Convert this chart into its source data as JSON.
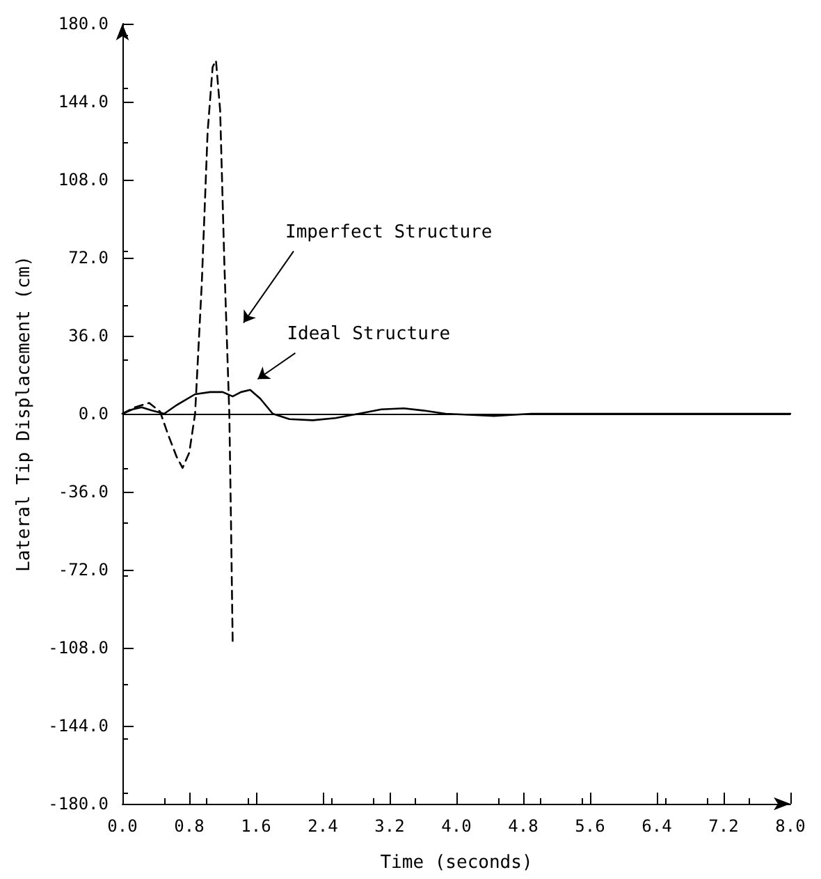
{
  "chart_data": {
    "type": "line",
    "xlabel": "Time (seconds)",
    "ylabel": "Lateral Tip Displacement (cm)",
    "xlim": [
      0,
      8.0
    ],
    "xticks": [
      {
        "value": 0,
        "label": "0.0"
      },
      {
        "value": 0.8,
        "label": "0.8"
      },
      {
        "value": 1.6,
        "label": "1.6"
      },
      {
        "value": 2.4,
        "label": "2.4"
      },
      {
        "value": 3.2,
        "label": "3.2"
      },
      {
        "value": 4.0,
        "label": "4.0"
      },
      {
        "value": 4.8,
        "label": "4.8"
      },
      {
        "value": 5.6,
        "label": "5.6"
      },
      {
        "value": 6.4,
        "label": "6.4"
      },
      {
        "value": 7.2,
        "label": "7.2"
      },
      {
        "value": 8.0,
        "label": "8.0"
      }
    ],
    "ylim": [
      -180,
      180
    ],
    "yticks": [
      {
        "value": -180,
        "label": "-180.0"
      },
      {
        "value": -144,
        "label": "-144.0"
      },
      {
        "value": -108,
        "label": "-108.0"
      },
      {
        "value": -72,
        "label": "-72.0"
      },
      {
        "value": -36,
        "label": "-36.0"
      },
      {
        "value": 0,
        "label": "0.0"
      },
      {
        "value": 36,
        "label": "36.0"
      },
      {
        "value": 72,
        "label": "72.0"
      },
      {
        "value": 108,
        "label": "108.0"
      },
      {
        "value": 144,
        "label": "144.0"
      },
      {
        "value": 180,
        "label": "180.0"
      }
    ],
    "grid": false,
    "marker": "none",
    "ref_lines": [
      {
        "axis": "y",
        "value": 0,
        "color": "#000000"
      }
    ],
    "annotations": [
      "Imperfect Structure",
      "Ideal Structure"
    ],
    "series": [
      {
        "color": "#000000",
        "line_style": "solid",
        "x": [
          0,
          0.12,
          0.23,
          0.35,
          0.5,
          0.65,
          0.87,
          1.05,
          1.2,
          1.32,
          1.42,
          1.53,
          1.65,
          1.8,
          2.0,
          2.28,
          2.55,
          2.83,
          3.1,
          3.37,
          3.6,
          3.87,
          4.15,
          4.45,
          4.9,
          5.5,
          6.5,
          7.2,
          8.0
        ],
        "values": [
          0,
          2,
          3,
          1.5,
          0,
          4,
          9,
          10,
          10,
          8,
          10,
          11,
          7,
          0,
          -2.5,
          -3,
          -2,
          0,
          2,
          2.5,
          1.5,
          0,
          -0.5,
          -1,
          0,
          0,
          0,
          0,
          0
        ]
      },
      {
        "color": "#000000",
        "line_style": "dashed",
        "x": [
          0,
          0.15,
          0.32,
          0.45,
          0.55,
          0.65,
          0.72,
          0.8,
          0.87,
          0.95,
          1.02,
          1.08,
          1.12,
          1.17,
          1.22,
          1.28,
          1.3,
          1.32
        ],
        "values": [
          0,
          3,
          5,
          1,
          -10,
          -20,
          -25,
          -18,
          0,
          60,
          130,
          160,
          163,
          140,
          70,
          0,
          -50,
          -105
        ]
      }
    ]
  }
}
